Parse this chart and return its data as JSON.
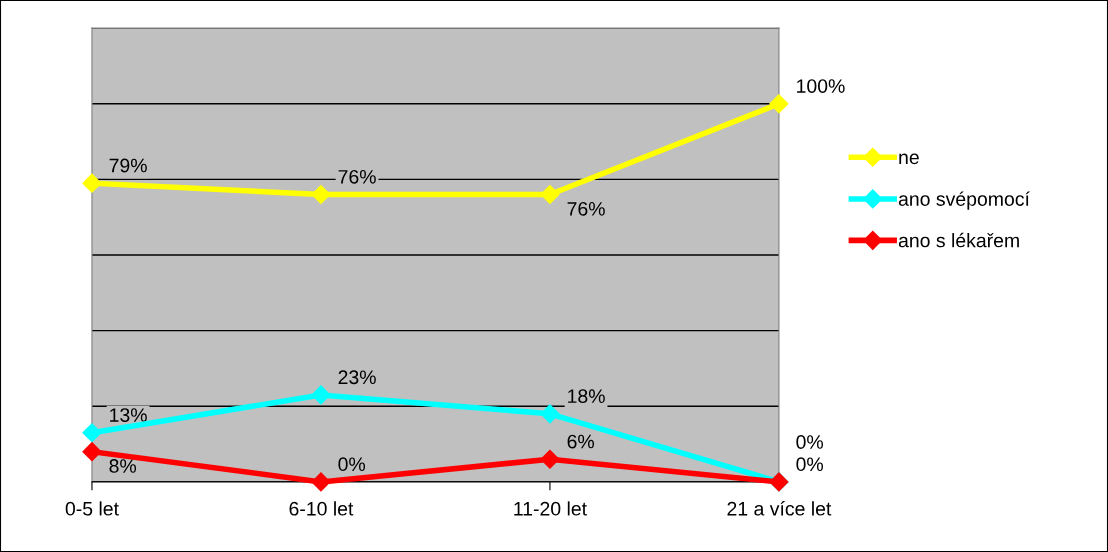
{
  "chart_data": {
    "type": "line",
    "categories": [
      "0-5 let",
      "6-10 let",
      "11-20 let",
      "21 a více let"
    ],
    "series": [
      {
        "name": "ne",
        "color": "#ffff00",
        "values": [
          79,
          76,
          76,
          100
        ],
        "value_labels": [
          "79%",
          "76%",
          "76%",
          "100%"
        ]
      },
      {
        "name": "ano svépomocí",
        "color": "#00ffff",
        "values": [
          13,
          23,
          18,
          0
        ],
        "value_labels": [
          "13%",
          "23%",
          "18%",
          "0%"
        ]
      },
      {
        "name": "ano s lékařem",
        "color": "#ff0000",
        "values": [
          8,
          0,
          6,
          0
        ],
        "value_labels": [
          "8%",
          "0%",
          "6%",
          "0%"
        ]
      }
    ],
    "ylim": [
      0,
      120
    ],
    "yticks": [
      {
        "value": 0,
        "label": null
      },
      {
        "value": 20,
        "label": null
      },
      {
        "value": 40,
        "label": null
      },
      {
        "value": 60,
        "label": null
      },
      {
        "value": 80,
        "label": null
      },
      {
        "value": 100,
        "label": null
      },
      {
        "value": 120,
        "label": null
      }
    ],
    "tick_labels": "x",
    "grid": "y",
    "legend": "right",
    "marker": "diamond",
    "line_style": "solid"
  }
}
